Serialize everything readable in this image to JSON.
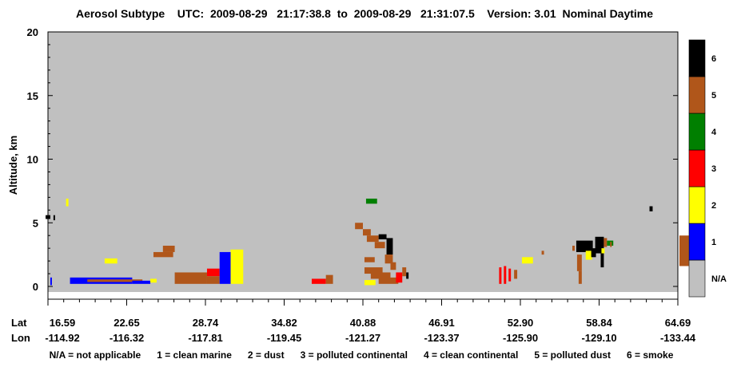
{
  "chart_data": {
    "type": "heatmap",
    "title": "Aerosol Subtype    UTC:  2009-08-29   21:17:38.8  to  2009-08-29   21:31:07.5    Version: 3.01  Nominal Daytime",
    "ylabel": "Altitude, km",
    "ylim": [
      -0.5,
      20
    ],
    "yticks": [
      "0",
      "5",
      "10",
      "15",
      "20"
    ],
    "x_row_labels": [
      "Lat",
      "Lon"
    ],
    "xlim": [
      0,
      8
    ],
    "lat_ticks": [
      "16.59",
      "22.65",
      "28.74",
      "34.82",
      "40.88",
      "46.91",
      "52.90",
      "58.84",
      "64.69"
    ],
    "lon_ticks": [
      "-114.92",
      "-116.32",
      "-117.81",
      "-119.45",
      "-121.27",
      "-123.37",
      "-125.90",
      "-129.10",
      "-133.44"
    ],
    "colorbar": {
      "labels": [
        "N/A",
        "1",
        "2",
        "3",
        "4",
        "5",
        "6"
      ],
      "colors": [
        "#c0c0c0",
        "#0000ff",
        "#ffff00",
        "#ff0000",
        "#007f00",
        "#b0561a",
        "#000000"
      ]
    },
    "legend_text": "N/A = not applicable      1 = clean marine      2 = dust      3 = polluted continental      4 = clean continental      5 = polluted dust      6 = smoke",
    "background_color": "#c0c0c0",
    "cells": [
      {
        "c": 6,
        "x0": -0.03,
        "x1": 0.03,
        "y0": 5.3,
        "y1": 5.6
      },
      {
        "c": 6,
        "x0": 0.07,
        "x1": 0.09,
        "y0": 5.2,
        "y1": 5.6
      },
      {
        "c": 2,
        "x0": 0.23,
        "x1": 0.26,
        "y0": 6.3,
        "y1": 6.9
      },
      {
        "c": 1,
        "x0": 0.03,
        "x1": 0.05,
        "y0": 0.1,
        "y1": 0.7
      },
      {
        "c": 1,
        "x0": 0.28,
        "x1": 1.07,
        "y0": 0.2,
        "y1": 0.7
      },
      {
        "c": 5,
        "x0": 0.5,
        "x1": 1.2,
        "y0": 0.35,
        "y1": 0.55
      },
      {
        "c": 1,
        "x0": 1.07,
        "x1": 1.3,
        "y0": 0.2,
        "y1": 0.45
      },
      {
        "c": 2,
        "x0": 0.72,
        "x1": 0.88,
        "y0": 1.8,
        "y1": 2.2
      },
      {
        "c": 5,
        "x0": 1.34,
        "x1": 1.59,
        "y0": 2.3,
        "y1": 2.7
      },
      {
        "c": 5,
        "x0": 1.46,
        "x1": 1.61,
        "y0": 2.7,
        "y1": 3.2
      },
      {
        "c": 2,
        "x0": 1.3,
        "x1": 1.38,
        "y0": 0.3,
        "y1": 0.6
      },
      {
        "c": 5,
        "x0": 1.61,
        "x1": 2.02,
        "y0": 0.2,
        "y1": 1.1
      },
      {
        "c": 3,
        "x0": 2.02,
        "x1": 2.18,
        "y0": 0.8,
        "y1": 1.4
      },
      {
        "c": 5,
        "x0": 2.02,
        "x1": 2.18,
        "y0": 0.2,
        "y1": 0.8
      },
      {
        "c": 1,
        "x0": 2.18,
        "x1": 2.32,
        "y0": 0.2,
        "y1": 2.7
      },
      {
        "c": 2,
        "x0": 2.32,
        "x1": 2.48,
        "y0": 0.2,
        "y1": 2.9
      },
      {
        "c": 3,
        "x0": 3.35,
        "x1": 3.53,
        "y0": 0.2,
        "y1": 0.6
      },
      {
        "c": 5,
        "x0": 3.53,
        "x1": 3.62,
        "y0": 0.2,
        "y1": 0.9
      },
      {
        "c": 4,
        "x0": 4.04,
        "x1": 4.18,
        "y0": 6.5,
        "y1": 6.9
      },
      {
        "c": 5,
        "x0": 3.9,
        "x1": 4.0,
        "y0": 4.5,
        "y1": 5.0
      },
      {
        "c": 5,
        "x0": 4.0,
        "x1": 4.1,
        "y0": 4.0,
        "y1": 4.5
      },
      {
        "c": 5,
        "x0": 4.05,
        "x1": 4.2,
        "y0": 3.5,
        "y1": 4.0
      },
      {
        "c": 5,
        "x0": 4.15,
        "x1": 4.28,
        "y0": 3.0,
        "y1": 3.5
      },
      {
        "c": 6,
        "x0": 4.2,
        "x1": 4.3,
        "y0": 3.7,
        "y1": 4.1
      },
      {
        "c": 6,
        "x0": 4.3,
        "x1": 4.38,
        "y0": 2.5,
        "y1": 3.8
      },
      {
        "c": 5,
        "x0": 4.28,
        "x1": 4.38,
        "y0": 1.8,
        "y1": 2.5
      },
      {
        "c": 5,
        "x0": 4.35,
        "x1": 4.42,
        "y0": 1.3,
        "y1": 1.9
      },
      {
        "c": 5,
        "x0": 4.02,
        "x1": 4.15,
        "y0": 1.9,
        "y1": 2.3
      },
      {
        "c": 5,
        "x0": 4.02,
        "x1": 4.25,
        "y0": 1.0,
        "y1": 1.5
      },
      {
        "c": 5,
        "x0": 4.1,
        "x1": 4.35,
        "y0": 0.6,
        "y1": 1.1
      },
      {
        "c": 5,
        "x0": 4.2,
        "x1": 4.45,
        "y0": 0.2,
        "y1": 0.7
      },
      {
        "c": 3,
        "x0": 4.42,
        "x1": 4.5,
        "y0": 0.3,
        "y1": 1.1
      },
      {
        "c": 5,
        "x0": 4.5,
        "x1": 4.55,
        "y0": 0.8,
        "y1": 1.5
      },
      {
        "c": 6,
        "x0": 4.55,
        "x1": 4.58,
        "y0": 0.6,
        "y1": 1.1
      },
      {
        "c": 2,
        "x0": 4.02,
        "x1": 4.16,
        "y0": 0.1,
        "y1": 0.5
      },
      {
        "c": 3,
        "x0": 5.73,
        "x1": 5.76,
        "y0": 0.2,
        "y1": 1.5
      },
      {
        "c": 3,
        "x0": 5.79,
        "x1": 5.82,
        "y0": 0.2,
        "y1": 1.6
      },
      {
        "c": 3,
        "x0": 5.85,
        "x1": 5.88,
        "y0": 0.4,
        "y1": 1.4
      },
      {
        "c": 5,
        "x0": 5.92,
        "x1": 5.96,
        "y0": 0.6,
        "y1": 1.3
      },
      {
        "c": 2,
        "x0": 6.02,
        "x1": 6.16,
        "y0": 1.8,
        "y1": 2.3
      },
      {
        "c": 5,
        "x0": 6.27,
        "x1": 6.3,
        "y0": 2.5,
        "y1": 2.8
      },
      {
        "c": 5,
        "x0": 6.66,
        "x1": 6.69,
        "y0": 2.8,
        "y1": 3.2
      },
      {
        "c": 6,
        "x0": 6.71,
        "x1": 6.92,
        "y0": 2.7,
        "y1": 3.6
      },
      {
        "c": 5,
        "x0": 6.72,
        "x1": 6.78,
        "y0": 1.2,
        "y1": 2.5
      },
      {
        "c": 5,
        "x0": 6.74,
        "x1": 6.78,
        "y0": 0.2,
        "y1": 1.2
      },
      {
        "c": 2,
        "x0": 6.83,
        "x1": 6.91,
        "y0": 2.1,
        "y1": 2.8
      },
      {
        "c": 6,
        "x0": 6.9,
        "x1": 6.96,
        "y0": 2.3,
        "y1": 3.0
      },
      {
        "c": 6,
        "x0": 6.95,
        "x1": 7.06,
        "y0": 2.6,
        "y1": 3.9
      },
      {
        "c": 5,
        "x0": 7.06,
        "x1": 7.1,
        "y0": 3.1,
        "y1": 3.8
      },
      {
        "c": 2,
        "x0": 7.03,
        "x1": 7.07,
        "y0": 2.6,
        "y1": 3.0
      },
      {
        "c": 6,
        "x0": 7.02,
        "x1": 7.06,
        "y0": 1.5,
        "y1": 2.6
      },
      {
        "c": 4,
        "x0": 7.1,
        "x1": 7.18,
        "y0": 3.2,
        "y1": 3.6
      },
      {
        "c": 5,
        "x0": 7.14,
        "x1": 7.16,
        "y0": 3.1,
        "y1": 3.5
      },
      {
        "c": 6,
        "x0": 7.64,
        "x1": 7.68,
        "y0": 5.9,
        "y1": 6.3
      },
      {
        "c": 5,
        "x0": 8.02,
        "x1": 8.14,
        "y0": 1.6,
        "y1": 4.0
      }
    ]
  }
}
